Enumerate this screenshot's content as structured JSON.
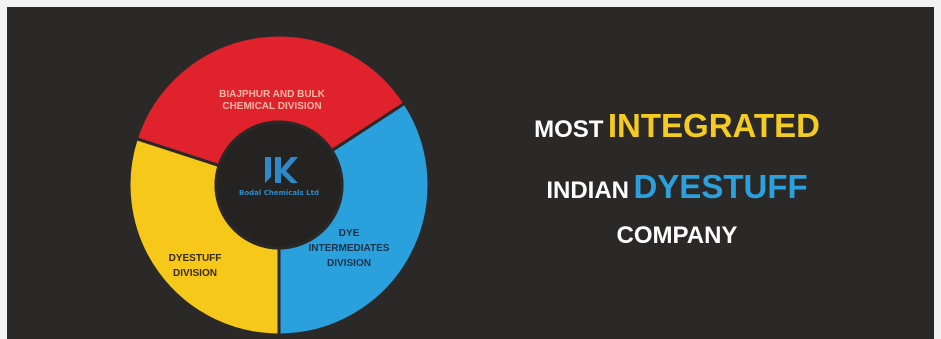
{
  "diagram": {
    "segments": [
      {
        "id": "red",
        "label_lines": [
          "BIAJPHUR AND BULK",
          "CHEMICAL DIVISION"
        ],
        "color": "#e0222d",
        "text_color": "#f7b8a6"
      },
      {
        "id": "blue",
        "label_lines": [
          "DYE",
          "INTERMEDIATES",
          "DIVISION"
        ],
        "color": "#2aa1dc",
        "text_color": "#1d3148"
      },
      {
        "id": "yellow",
        "label_lines": [
          "DYESTUFF",
          "DIVISION"
        ],
        "color": "#f6c81a",
        "text_color": "#3a2a10"
      }
    ],
    "center": {
      "logo_text": "Bodal Chemicals Ltd",
      "color": "#252222",
      "logo_color": "#2f89c7"
    }
  },
  "headline": {
    "line1": {
      "white": "MOST",
      "accent": "INTEGRATED",
      "accent_color": "#f4cb21"
    },
    "line2": {
      "white": "INDIAN",
      "accent": "DYESTUFF",
      "accent_color": "#2aa1dc"
    },
    "line3": {
      "white": "COMPANY"
    }
  }
}
